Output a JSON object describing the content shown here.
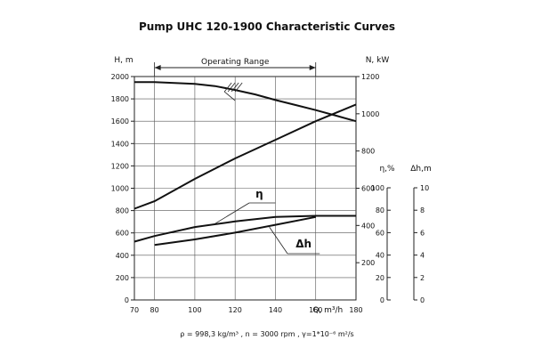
{
  "chart_data": {
    "type": "line",
    "title": "Pump UHC 120-1900 Characteristic Curves",
    "x_axis": {
      "label": "Q, m³/h",
      "ticks": [
        70,
        80,
        100,
        120,
        140,
        160,
        180
      ],
      "range": [
        70,
        180
      ]
    },
    "y_axis_head": {
      "label": "H, m",
      "ticks": [
        0,
        200,
        400,
        600,
        800,
        1000,
        1200,
        1400,
        1600,
        1800,
        2000
      ],
      "range": [
        0,
        2000
      ]
    },
    "y_axis_power": {
      "label": "N, kW",
      "ticks": [
        200,
        400,
        600,
        800,
        1000,
        1200
      ],
      "range": [
        0,
        1200
      ]
    },
    "y_axis_efficiency": {
      "label": "η,%",
      "ticks": [
        0,
        20,
        40,
        60,
        80,
        100
      ],
      "range": [
        0,
        100
      ]
    },
    "y_axis_npsh": {
      "label": "Δh,m",
      "ticks": [
        0,
        2,
        4,
        6,
        8,
        10
      ],
      "range": [
        0,
        10
      ]
    },
    "operating_range": {
      "label": "Operating Range",
      "from": 80,
      "to": 160
    },
    "grid": true,
    "series": [
      {
        "key": "head",
        "axis": "head",
        "x": [
          70,
          80,
          100,
          110,
          120,
          130,
          140,
          150,
          160,
          170,
          180
        ],
        "y": [
          1950,
          1950,
          1935,
          1915,
          1880,
          1840,
          1790,
          1745,
          1700,
          1650,
          1600
        ]
      },
      {
        "key": "power",
        "axis": "power",
        "x": [
          70,
          80,
          100,
          120,
          140,
          160,
          180
        ],
        "y": [
          490,
          530,
          650,
          760,
          860,
          960,
          1050
        ]
      },
      {
        "key": "efficiency",
        "name": "η",
        "axis": "efficiency",
        "x": [
          70,
          80,
          100,
          120,
          140,
          160,
          180
        ],
        "y": [
          52,
          57,
          65,
          70,
          74,
          75,
          75
        ]
      },
      {
        "key": "npsh",
        "name": "Δh",
        "axis": "npsh",
        "x": [
          80,
          100,
          120,
          140,
          160
        ],
        "y": [
          4.9,
          5.4,
          6.0,
          6.7,
          7.4
        ]
      }
    ],
    "footer": "ρ = 998,3 kg/m³ ,   n = 3000 rpm ,   γ=1*10⁻⁶ m²/s"
  }
}
